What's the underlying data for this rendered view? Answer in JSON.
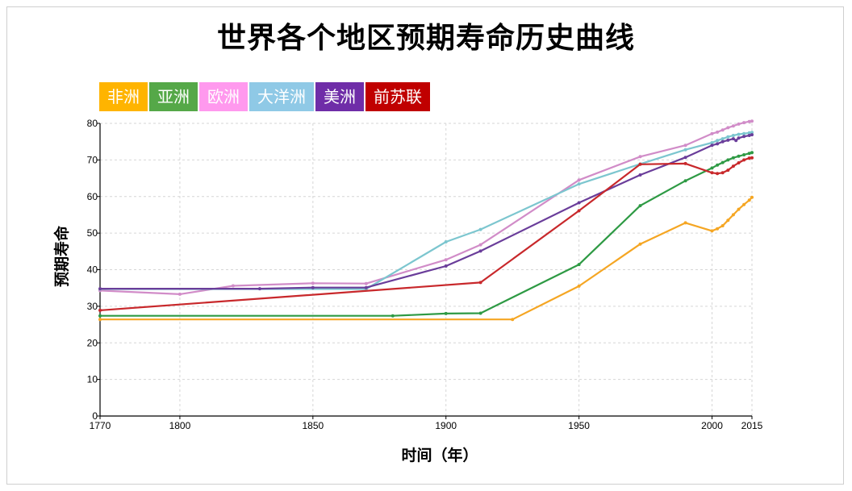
{
  "chart_data": {
    "type": "line",
    "title": "世界各个地区预期寿命历史曲线",
    "xlabel": "时间（年）",
    "ylabel": "预期寿命",
    "xlim": [
      1770,
      2015
    ],
    "ylim": [
      0,
      80
    ],
    "x_ticks": [
      1770,
      1800,
      1850,
      1900,
      1950,
      2000,
      2015
    ],
    "y_ticks": [
      0,
      10,
      20,
      30,
      40,
      50,
      60,
      70,
      80
    ],
    "grid": true,
    "legend_position": "top-left",
    "series": [
      {
        "name": "非洲",
        "color": "#f5a623",
        "legend_color": "#ffb400",
        "points": [
          [
            1770,
            26.4
          ],
          [
            1925,
            26.4
          ],
          [
            1950,
            35.5
          ],
          [
            1973,
            47
          ],
          [
            1990,
            52.8
          ],
          [
            2000,
            50.6
          ],
          [
            2002,
            51.2
          ],
          [
            2004,
            52
          ],
          [
            2006,
            53.5
          ],
          [
            2008,
            55
          ],
          [
            2010,
            56.5
          ],
          [
            2012,
            57.8
          ],
          [
            2014,
            59
          ],
          [
            2015,
            59.8
          ]
        ]
      },
      {
        "name": "亚洲",
        "color": "#2e9a44",
        "legend_color": "#55a848",
        "points": [
          [
            1770,
            27.4
          ],
          [
            1880,
            27.4
          ],
          [
            1900,
            28
          ],
          [
            1913,
            28.1
          ],
          [
            1950,
            41.4
          ],
          [
            1973,
            57.5
          ],
          [
            1990,
            64.3
          ],
          [
            2000,
            67.8
          ],
          [
            2002,
            68.6
          ],
          [
            2004,
            69.3
          ],
          [
            2006,
            70
          ],
          [
            2008,
            70.6
          ],
          [
            2010,
            71
          ],
          [
            2012,
            71.4
          ],
          [
            2014,
            71.8
          ],
          [
            2015,
            72
          ]
        ]
      },
      {
        "name": "欧洲",
        "color": "#d18cc8",
        "legend_color": "#ff99ee",
        "points": [
          [
            1770,
            34.3
          ],
          [
            1800,
            33.3
          ],
          [
            1820,
            35.6
          ],
          [
            1850,
            36.3
          ],
          [
            1870,
            36.2
          ],
          [
            1900,
            42.7
          ],
          [
            1913,
            46.8
          ],
          [
            1950,
            64.5
          ],
          [
            1973,
            70.9
          ],
          [
            1990,
            74
          ],
          [
            2000,
            77.2
          ],
          [
            2002,
            77.6
          ],
          [
            2004,
            78.2
          ],
          [
            2006,
            78.8
          ],
          [
            2008,
            79.3
          ],
          [
            2010,
            79.8
          ],
          [
            2012,
            80.2
          ],
          [
            2014,
            80.5
          ],
          [
            2015,
            80.6
          ]
        ]
      },
      {
        "name": "大洋洲",
        "color": "#7cc6cf",
        "legend_color": "#8fc9e6",
        "points": [
          [
            1770,
            34.7
          ],
          [
            1870,
            34.7
          ],
          [
            1900,
            47.6
          ],
          [
            1913,
            51
          ],
          [
            1950,
            63.4
          ],
          [
            1973,
            68.9
          ],
          [
            1990,
            72.8
          ],
          [
            2000,
            74.7
          ],
          [
            2002,
            75.3
          ],
          [
            2004,
            75.8
          ],
          [
            2006,
            76.3
          ],
          [
            2008,
            76.7
          ],
          [
            2010,
            77
          ],
          [
            2012,
            77.2
          ],
          [
            2014,
            77.4
          ],
          [
            2015,
            77.5
          ]
        ]
      },
      {
        "name": "美洲",
        "color": "#6a3d9a",
        "legend_color": "#6f2da8",
        "points": [
          [
            1770,
            34.8
          ],
          [
            1830,
            34.8
          ],
          [
            1850,
            35.1
          ],
          [
            1870,
            35.1
          ],
          [
            1900,
            41
          ],
          [
            1913,
            45.1
          ],
          [
            1950,
            58.3
          ],
          [
            1973,
            65.9
          ],
          [
            1990,
            70.7
          ],
          [
            2000,
            74
          ],
          [
            2002,
            74.4
          ],
          [
            2004,
            75
          ],
          [
            2006,
            75.4
          ],
          [
            2008,
            75.8
          ],
          [
            2009,
            75.3
          ],
          [
            2010,
            76
          ],
          [
            2012,
            76.4
          ],
          [
            2014,
            76.7
          ],
          [
            2015,
            76.9
          ]
        ]
      },
      {
        "name": "前苏联",
        "color": "#c8282b",
        "legend_color": "#c00000",
        "points": [
          [
            1770,
            28.9
          ],
          [
            1913,
            36.5
          ],
          [
            1950,
            56.1
          ],
          [
            1973,
            68.8
          ],
          [
            1990,
            69
          ],
          [
            2000,
            66.5
          ],
          [
            2002,
            66.3
          ],
          [
            2004,
            66.5
          ],
          [
            2006,
            67.2
          ],
          [
            2008,
            68.3
          ],
          [
            2010,
            69.2
          ],
          [
            2012,
            70
          ],
          [
            2014,
            70.5
          ],
          [
            2015,
            70.6
          ]
        ]
      }
    ]
  }
}
